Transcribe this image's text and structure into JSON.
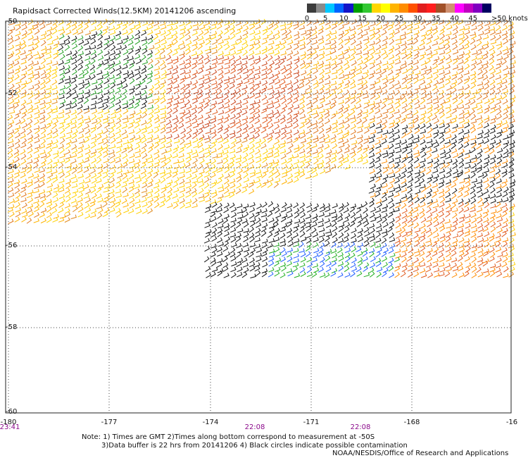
{
  "title": "Rapidsact Corrected Winds(12.5KM) 20141206 ascending",
  "colorbar": {
    "labels": [
      "0",
      "5",
      "10",
      "15",
      "20",
      "25",
      "30",
      "35",
      "40",
      "45",
      ">50 knots"
    ],
    "colors": [
      "#3c3c3c",
      "#8a8a8a",
      "#00c8ff",
      "#0064ff",
      "#1414c8",
      "#00a000",
      "#32c832",
      "#ffd700",
      "#ffff00",
      "#ffb400",
      "#ff8c00",
      "#ff5000",
      "#e01e1e",
      "#ff1e1e",
      "#a05028",
      "#d09070",
      "#ff00ff",
      "#c000c0",
      "#8000c0",
      "#000060"
    ]
  },
  "map": {
    "lat_labels": [
      "-50",
      "-52",
      "-54",
      "-56",
      "-58",
      "-60"
    ],
    "lon_labels": [
      "-180",
      "-177",
      "-174",
      "-171",
      "-168",
      "-16"
    ],
    "time_labels": [
      "23:41",
      "22:08",
      "22:08"
    ]
  },
  "notes": {
    "line1": "Note: 1) Times are GMT 2)Times along bottom correspond to measurement at -50S",
    "line2": "3)Data buffer is 22 hrs from 20141206 4) Black circles indicate possible contamination",
    "credit": "NOAA/NESDIS/Office of Research and Applications"
  }
}
